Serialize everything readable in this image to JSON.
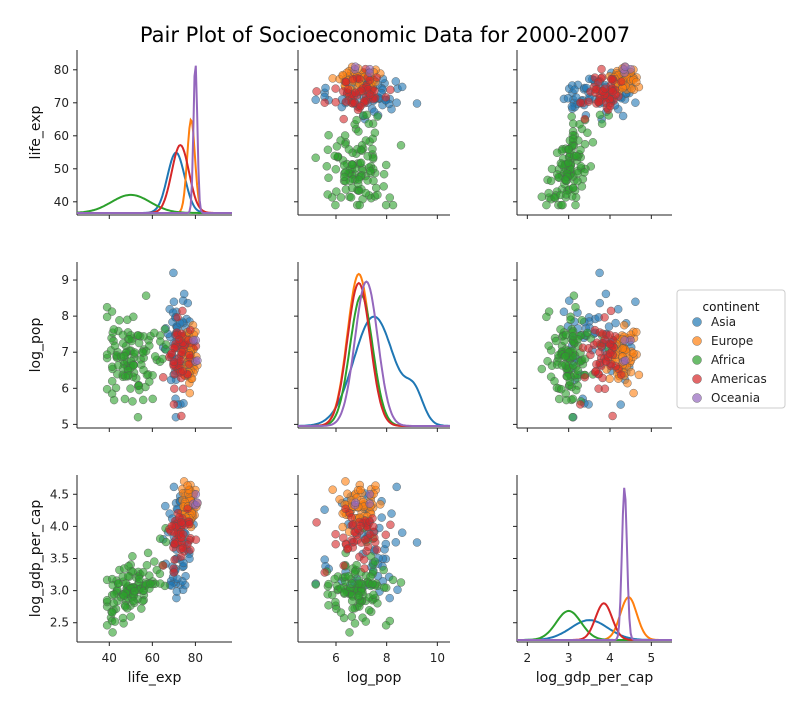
{
  "chart_data": {
    "type": "pairplot",
    "title": "Pair Plot of Socioeconomic Data for 2000-2007",
    "variables": [
      "life_exp",
      "log_pop",
      "log_gdp_per_cap"
    ],
    "axes": {
      "life_exp": {
        "lim": [
          25,
          97
        ],
        "ticks": [
          40,
          60,
          80
        ],
        "diag_ticks": [
          40,
          50,
          60,
          70,
          80
        ]
      },
      "log_pop": {
        "lim": [
          4.5,
          10.5
        ],
        "ticks": [
          6,
          8,
          10
        ],
        "ylim": [
          4.9,
          9.5
        ],
        "yticks": [
          5,
          6,
          7,
          8,
          9
        ]
      },
      "log_gdp_per_cap": {
        "lim": [
          1.75,
          5.5
        ],
        "ticks": [
          2,
          3,
          4,
          5
        ],
        "ylim": [
          2.2,
          4.8
        ],
        "yticks": [
          2.5,
          3.0,
          3.5,
          4.0,
          4.5
        ]
      }
    },
    "diag_density_peaks": [
      {
        "variable": "life_exp",
        "groups": {
          "Asia": [
            71,
            0.4
          ],
          "Europe": [
            78,
            0.62
          ],
          "Africa": [
            50,
            0.12
          ],
          "Americas": [
            73,
            0.45
          ],
          "Oceania": [
            80,
            1.0
          ]
        }
      },
      {
        "variable": "log_pop",
        "groups": {
          "Asia": [
            7.5,
            0.72
          ],
          "Europe": [
            6.9,
            1.0
          ],
          "Africa": [
            7.0,
            0.86
          ],
          "Americas": [
            6.9,
            0.94
          ],
          "Oceania": [
            7.2,
            0.95
          ]
        }
      },
      {
        "variable": "log_gdp_per_cap",
        "groups": {
          "Asia": [
            3.5,
            0.13
          ],
          "Europe": [
            4.45,
            0.28
          ],
          "Africa": [
            3.0,
            0.19
          ],
          "Americas": [
            3.85,
            0.24
          ],
          "Oceania": [
            4.35,
            1.0
          ]
        }
      }
    ],
    "groups": [
      {
        "name": "Asia",
        "color": "#1f77b4",
        "life_exp": [
          72,
          3.5
        ],
        "log_pop": [
          7.2,
          0.8
        ],
        "log_gdp": [
          3.7,
          0.45
        ]
      },
      {
        "name": "Europe",
        "color": "#ff7f0e",
        "life_exp": [
          77,
          2.0
        ],
        "log_pop": [
          6.9,
          0.45
        ],
        "log_gdp": [
          4.35,
          0.2
        ]
      },
      {
        "name": "Africa",
        "color": "#2ca02c",
        "life_exp": [
          50,
          7.0
        ],
        "log_pop": [
          6.9,
          0.6
        ],
        "log_gdp": [
          3.0,
          0.35
        ]
      },
      {
        "name": "Americas",
        "color": "#d62728",
        "life_exp": [
          73,
          3.0
        ],
        "log_pop": [
          6.8,
          0.55
        ],
        "log_gdp": [
          3.85,
          0.2
        ]
      },
      {
        "name": "Oceania",
        "color": "#9467bd",
        "life_exp": [
          80,
          0.6
        ],
        "log_pop": [
          7.0,
          0.3
        ],
        "log_gdp": [
          4.4,
          0.05
        ]
      }
    ],
    "legend": {
      "title": "continent",
      "position": "right"
    }
  }
}
